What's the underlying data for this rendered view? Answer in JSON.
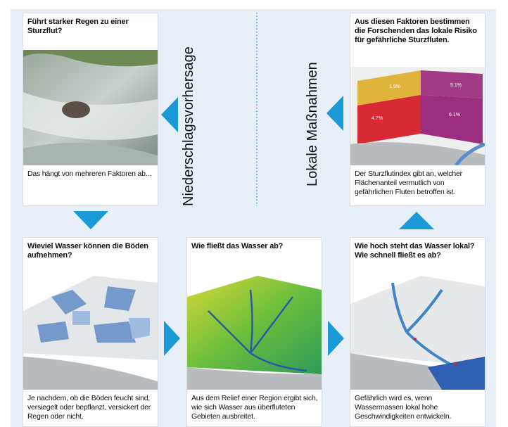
{
  "side_labels": {
    "left": "Niederschlagsvorhersage",
    "right": "Lokale Maßnahmen"
  },
  "cards": [
    {
      "title": "Führt starker Regen zu einer Sturzflut?",
      "caption": "Das hängt von mehreren Faktoren ab..."
    },
    {
      "title": "Aus diesen Faktoren bestimmen die Forschenden das lokale Risiko für gefährliche Sturzfluten.",
      "caption": "Der Sturzflutindex gibt an, welcher Flächenanteil vermutlich von gefährlichen Fluten betroffen ist.",
      "map_labels": [
        "1.9%",
        "5.1%",
        "4.7%",
        "6.1%"
      ]
    },
    {
      "title": "Wieviel Wasser können die Böden aufnehmen?",
      "caption": "Je nachdem, ob die Böden feucht sind, versiegelt oder bepflanzt, versickert der Regen oder nicht."
    },
    {
      "title": "Wie fließt das Wasser ab?",
      "caption": "Aus dem Relief einer Region ergibt sich, wie sich Wasser aus überfluteten Gebieten ausbreitet."
    },
    {
      "title": "Wie hoch steht das Wasser lokal? Wie schnell fließt es ab?",
      "caption": "Gefährlich wird es, wenn Wassermassen lokal hohe Geschwindigkeiten entwickeln."
    }
  ]
}
